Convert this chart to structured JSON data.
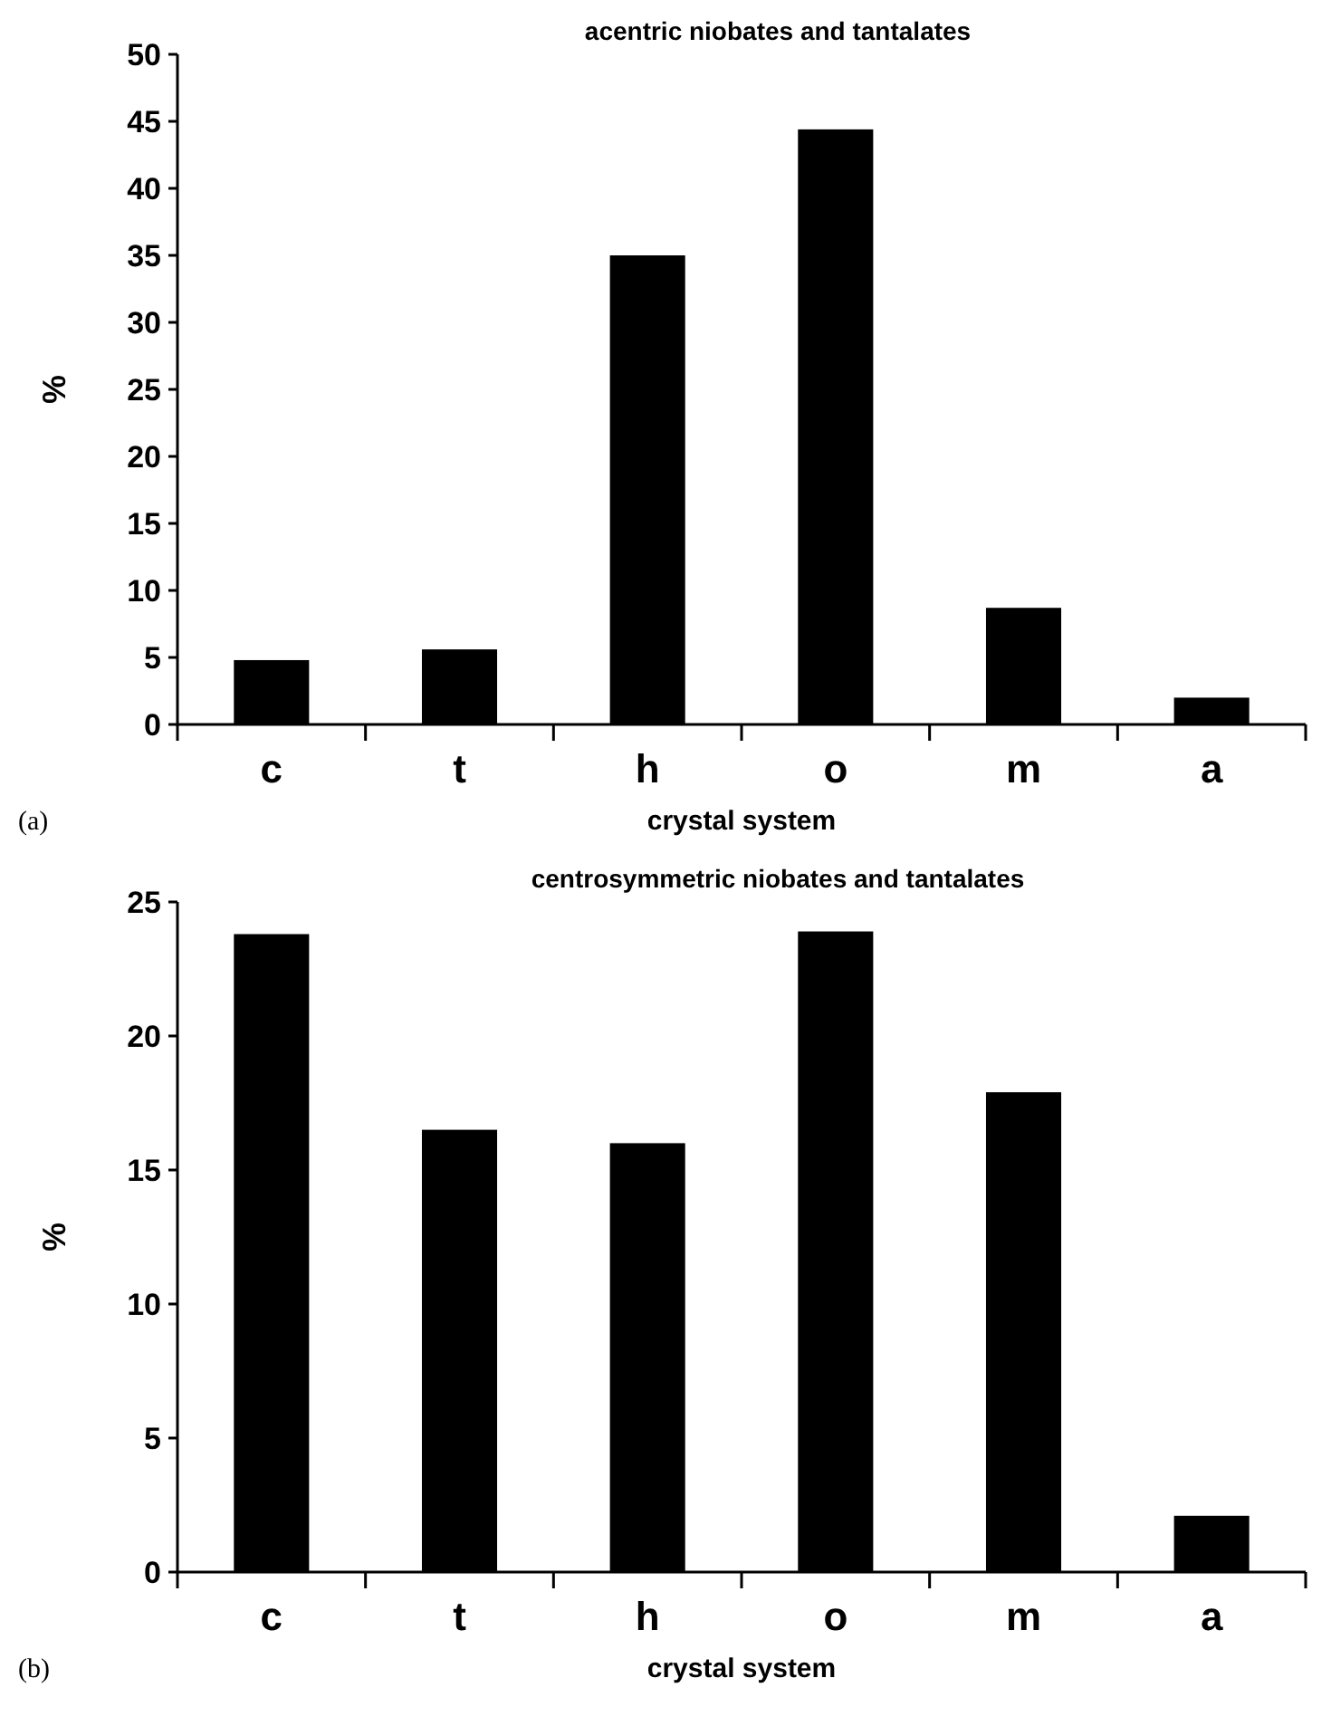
{
  "chart_data": [
    {
      "type": "bar",
      "title": "acentric niobates and tantalates",
      "xlabel": "crystal system",
      "ylabel": "%",
      "categories": [
        "c",
        "t",
        "h",
        "o",
        "m",
        "a"
      ],
      "values": [
        4.8,
        5.6,
        35.0,
        44.4,
        8.7,
        2.0
      ],
      "color": "#000000",
      "ylim": [
        0,
        50
      ],
      "yticks": [
        0,
        5,
        10,
        15,
        20,
        25,
        30,
        35,
        40,
        45,
        50
      ],
      "grid": false,
      "annotations": [
        "(a)"
      ]
    },
    {
      "type": "bar",
      "title": "centrosymmetric niobates and tantalates",
      "xlabel": "crystal system",
      "ylabel": "%",
      "categories": [
        "c",
        "t",
        "h",
        "o",
        "m",
        "a"
      ],
      "values": [
        23.8,
        16.5,
        16.0,
        23.9,
        17.9,
        2.1
      ],
      "color": "#000000",
      "ylim": [
        0,
        25
      ],
      "yticks": [
        0,
        5,
        10,
        15,
        20,
        25
      ],
      "grid": false,
      "annotations": [
        "(b)"
      ]
    }
  ]
}
